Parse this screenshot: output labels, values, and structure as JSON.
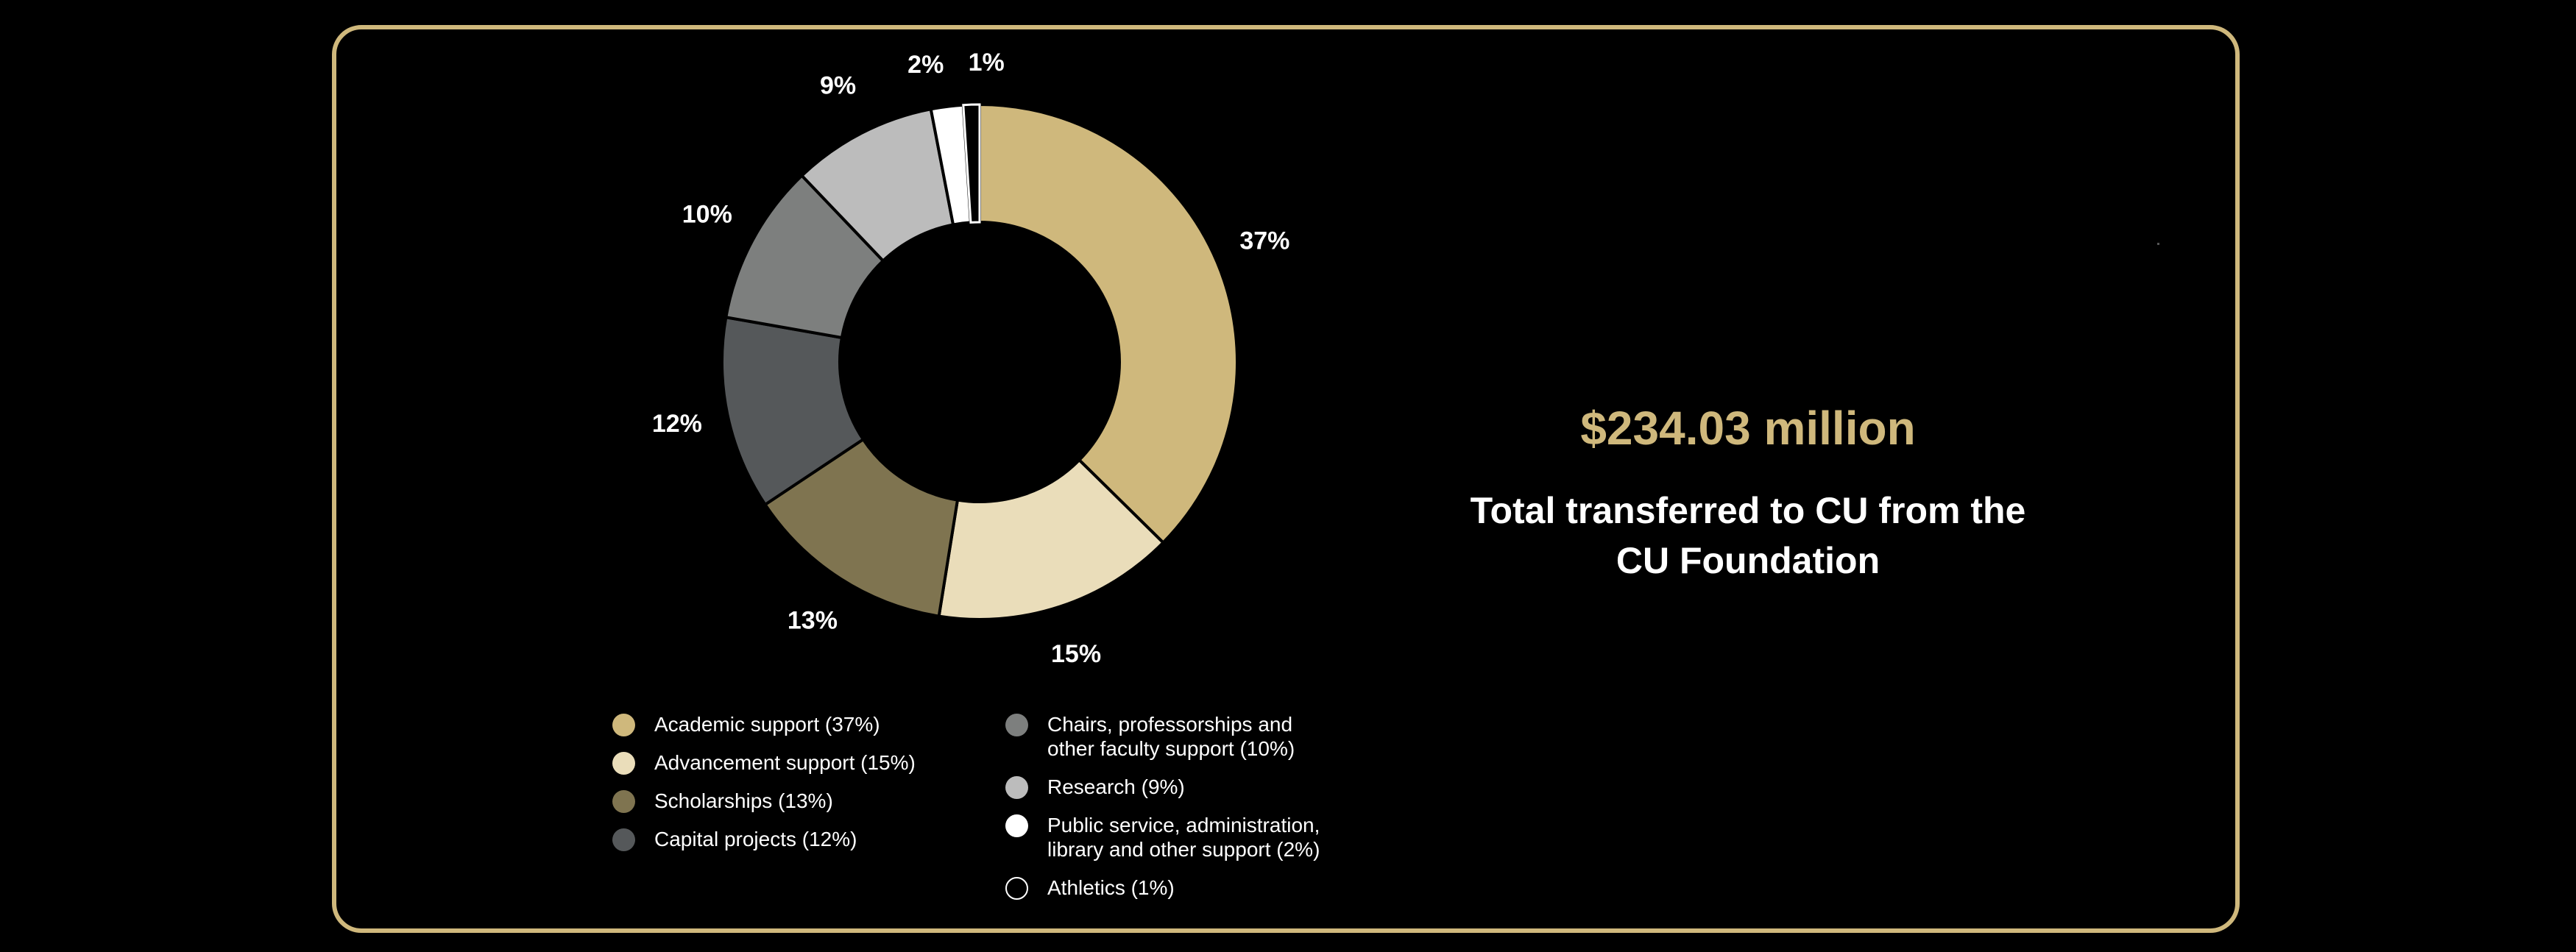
{
  "headline": {
    "amount": "$234.03 million",
    "subtitle_line1": "Total transferred to CU from the",
    "subtitle_line2": "CU Foundation"
  },
  "colors": {
    "frame": "#CFB87C",
    "background": "#000000",
    "amount_text": "#CFB87C"
  },
  "chart_data": {
    "type": "pie",
    "subtype": "donut",
    "title": "",
    "slices": [
      {
        "name": "Academic support",
        "value": 37,
        "label": "37%",
        "color": "#CFB87C",
        "legend": "Academic support (37%)"
      },
      {
        "name": "Advancement support",
        "value": 15,
        "label": "15%",
        "color": "#EADDBA",
        "legend": "Advancement support (15%)"
      },
      {
        "name": "Scholarships",
        "value": 13,
        "label": "13%",
        "color": "#7F7450",
        "legend": "Scholarships (13%)"
      },
      {
        "name": "Capital projects",
        "value": 12,
        "label": "12%",
        "color": "#55585A",
        "legend": "Capital projects (12%)"
      },
      {
        "name": "Chairs, professorships and other faculty support",
        "value": 10,
        "label": "10%",
        "color": "#7D7F7E",
        "legend": "Chairs, professorships and\nother faculty support (10%)"
      },
      {
        "name": "Research",
        "value": 9,
        "label": "9%",
        "color": "#BCBCBC",
        "legend": "Research (9%)"
      },
      {
        "name": "Public service, administration, library and other support",
        "value": 2,
        "label": "2%",
        "color": "#FFFFFF",
        "legend": "Public service, administration,\nlibrary and other support (2%)"
      },
      {
        "name": "Athletics",
        "value": 1,
        "label": "1%",
        "color": "#000000",
        "outline": "#FFFFFF",
        "legend": "Athletics (1%)"
      }
    ],
    "legend_placement": "bottom-left, two columns",
    "legend_columns": [
      [
        0,
        1,
        2,
        3
      ],
      [
        4,
        5,
        6,
        7
      ]
    ]
  }
}
